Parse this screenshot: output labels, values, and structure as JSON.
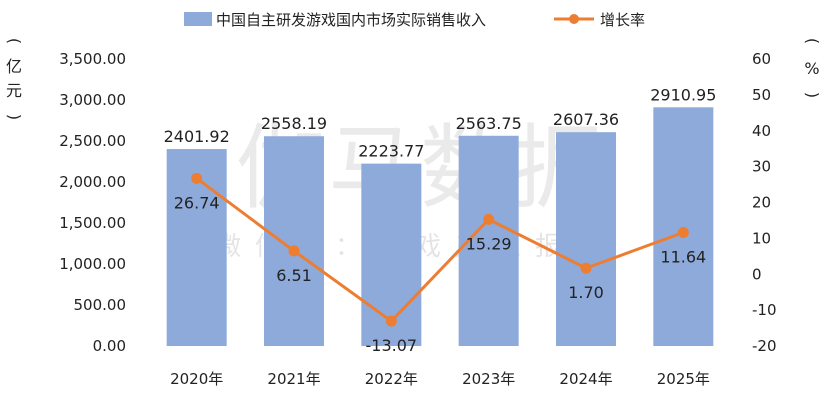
{
  "watermark": {
    "main": "伽马数据",
    "sub": "微信号：游戏产业报告"
  },
  "chart_data": {
    "type": "bar",
    "categories": [
      "2020年",
      "2021年",
      "2022年",
      "2023年",
      "2024年",
      "2025年"
    ],
    "series": [
      {
        "name": "中国自主研发游戏国内市场实际销售收入",
        "type": "bar",
        "axis": "left",
        "color": "#8eaadb",
        "values": [
          2401.92,
          2558.19,
          2223.77,
          2563.75,
          2607.36,
          2910.95
        ],
        "labels": [
          "2401.92",
          "2558.19",
          "2223.77",
          "2563.75",
          "2607.36",
          "2910.95"
        ]
      },
      {
        "name": "增长率",
        "type": "line",
        "axis": "right",
        "color": "#ed7d31",
        "values": [
          26.74,
          6.51,
          -13.07,
          15.29,
          1.7,
          11.64
        ],
        "labels": [
          "26.74",
          "6.51",
          "-13.07",
          "15.29",
          "1.70",
          "11.64"
        ]
      }
    ],
    "left_axis": {
      "label": [
        "(",
        "亿",
        "元",
        ")"
      ],
      "range": [
        0,
        3500
      ],
      "ticks": [
        0,
        500,
        1000,
        1500,
        2000,
        2500,
        3000,
        3500
      ],
      "tick_labels": [
        "0.00",
        "500.00",
        "1,000.00",
        "1,500.00",
        "2,000.00",
        "2,500.00",
        "3,000.00",
        "3,500.00"
      ]
    },
    "right_axis": {
      "label": [
        "(",
        "%",
        ")"
      ],
      "range": [
        -20,
        60
      ],
      "ticks": [
        -20,
        -10,
        0,
        10,
        20,
        30,
        40,
        50,
        60
      ],
      "tick_labels": [
        "-20",
        "-10",
        "0",
        "10",
        "20",
        "30",
        "40",
        "50",
        "60"
      ]
    },
    "grid": false,
    "legend": "top-center"
  }
}
